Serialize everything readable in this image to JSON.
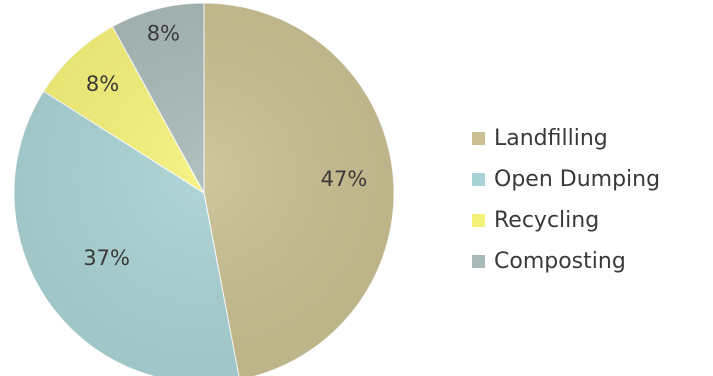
{
  "chart_data": {
    "type": "pie",
    "categories": [
      "Landfilling",
      "Open Dumping",
      "Recycling",
      "Composting"
    ],
    "values": [
      47,
      37,
      8,
      8
    ],
    "value_labels": [
      "47%",
      "37%",
      "8%",
      "8%"
    ],
    "colors": [
      "#c9bf92",
      "#a9d2d4",
      "#f5f27a",
      "#a8b9b7"
    ],
    "start_angle": "12 o'clock",
    "direction": "clockwise",
    "legend": {
      "placement": "right"
    }
  }
}
